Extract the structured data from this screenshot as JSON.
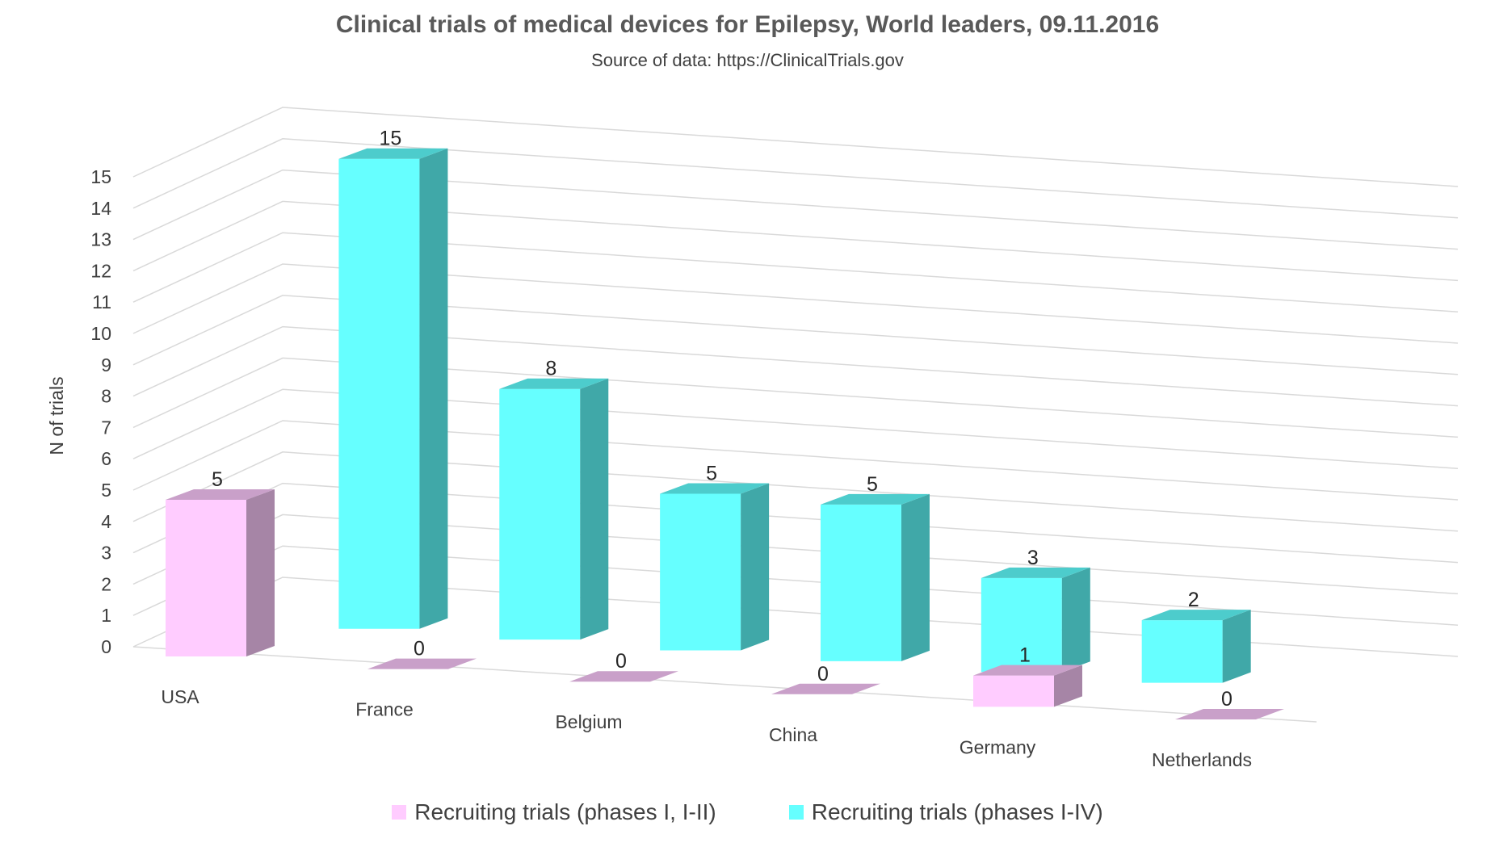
{
  "chart_data": {
    "type": "bar",
    "title": "Clinical trials of medical devices for Epilepsy, World leaders, 09.11.2016",
    "subtitle": "Source of data: https://ClinicalTrials.gov",
    "ylabel": "N of trials",
    "xlabel": "",
    "ylim": [
      0,
      15
    ],
    "yticks": [
      "0",
      "1",
      "2",
      "3",
      "4",
      "5",
      "6",
      "7",
      "8",
      "9",
      "10",
      "11",
      "12",
      "13",
      "14",
      "15"
    ],
    "categories": [
      "USA",
      "France",
      "Belgium",
      "China",
      "Germany",
      "Netherlands"
    ],
    "series": [
      {
        "name": "Recruiting trials (phases I, I-II)",
        "values": [
          5,
          0,
          0,
          0,
          1,
          0
        ],
        "color": "#ffccff"
      },
      {
        "name": "Recruiting trials (phases I-IV)",
        "values": [
          15,
          8,
          5,
          5,
          3,
          2
        ],
        "color": "#66ffff"
      }
    ],
    "grid": true,
    "legend": "bottom",
    "style": "3d-column"
  }
}
